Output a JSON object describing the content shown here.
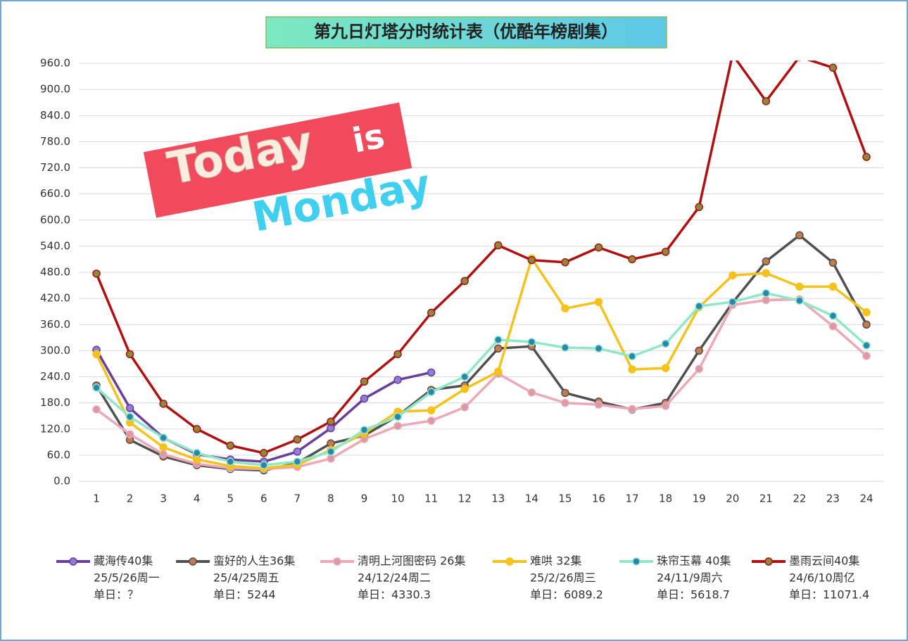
{
  "chart_data": {
    "type": "line",
    "title": "第九日灯塔分时统计表（优酷年榜剧集）",
    "annotations": [
      "Today",
      "is",
      "Monday"
    ],
    "categories": [
      "1",
      "2",
      "3",
      "4",
      "5",
      "6",
      "7",
      "8",
      "9",
      "10",
      "11",
      "12",
      "13",
      "14",
      "15",
      "16",
      "17",
      "18",
      "19",
      "20",
      "21",
      "22",
      "23",
      "24"
    ],
    "ylim": [
      0,
      960
    ],
    "yticks": [
      {
        "value": 0,
        "label": "0.0"
      },
      {
        "value": 60,
        "label": "60.0"
      },
      {
        "value": 120,
        "label": "120.0"
      },
      {
        "value": 180,
        "label": "180.0"
      },
      {
        "value": 240,
        "label": "240.0"
      },
      {
        "value": 300,
        "label": "300.0"
      },
      {
        "value": 360,
        "label": "360.0"
      },
      {
        "value": 420,
        "label": "420.0"
      },
      {
        "value": 480,
        "label": "480.0"
      },
      {
        "value": 540,
        "label": "540.0"
      },
      {
        "value": 600,
        "label": "600.0"
      },
      {
        "value": 660,
        "label": "660.0"
      },
      {
        "value": 720,
        "label": "720.0"
      },
      {
        "value": 780,
        "label": "780.0"
      },
      {
        "value": 840,
        "label": "840.0"
      },
      {
        "value": 900,
        "label": "900.0"
      },
      {
        "value": 960,
        "label": "960.0"
      }
    ],
    "grid": true,
    "series": [
      {
        "name": "藏海传40集",
        "date": "25/5/26周一",
        "daily": "单日：？",
        "color": "#6a3d9a",
        "marker_color": "#8f7fd8",
        "values": [
          302,
          168,
          100,
          62,
          50,
          45,
          68,
          122,
          190,
          233,
          250,
          null,
          null,
          null,
          null,
          null,
          null,
          null,
          null,
          null,
          null,
          null,
          null,
          null
        ]
      },
      {
        "name": "蛮好的人生36集",
        "date": "25/4/25周五",
        "daily": "单日：5244",
        "color": "#505050",
        "marker_color": "#c87a4a",
        "values": [
          220,
          95,
          57,
          37,
          28,
          25,
          42,
          87,
          105,
          150,
          210,
          220,
          305,
          310,
          203,
          183,
          165,
          180,
          300,
          410,
          505,
          565,
          502,
          360
        ]
      },
      {
        "name": "清明上河图密码 26集",
        "date": "24/12/24周二",
        "daily": "单日：4330.3",
        "color": "#eda8b6",
        "marker_color": "#d99aa5",
        "values": [
          165,
          108,
          62,
          40,
          30,
          28,
          33,
          52,
          97,
          127,
          139,
          170,
          247,
          204,
          180,
          176,
          166,
          173,
          258,
          405,
          416,
          418,
          356,
          288
        ]
      },
      {
        "name": "难哄 32集",
        "date": "25/2/26周三",
        "daily": "单日：6089.2",
        "color": "#f5c21b",
        "marker_color": "#f5c21b",
        "values": [
          292,
          135,
          78,
          50,
          35,
          30,
          38,
          72,
          110,
          160,
          163,
          212,
          252,
          512,
          397,
          412,
          257,
          260,
          400,
          473,
          478,
          447,
          447,
          388
        ]
      },
      {
        "name": "珠帘玉幕 40集",
        "date": "24/11/9周六",
        "daily": "单日：5618.7",
        "color": "#8ee8c8",
        "marker_color": "#2a86b0",
        "values": [
          215,
          148,
          100,
          65,
          45,
          37,
          45,
          68,
          118,
          148,
          205,
          240,
          325,
          320,
          307,
          305,
          287,
          316,
          402,
          412,
          432,
          415,
          380,
          312
        ]
      },
      {
        "name": "墨雨云间40集",
        "date": "24/6/10周亿",
        "daily": "单日：11071.4",
        "color": "#b01010",
        "marker_color": "#8c8a3c",
        "values": [
          477,
          292,
          178,
          120,
          82,
          65,
          96,
          137,
          229,
          292,
          387,
          460,
          542,
          508,
          503,
          537,
          510,
          527,
          630,
          980,
          873,
          975,
          950,
          745
        ]
      }
    ]
  }
}
